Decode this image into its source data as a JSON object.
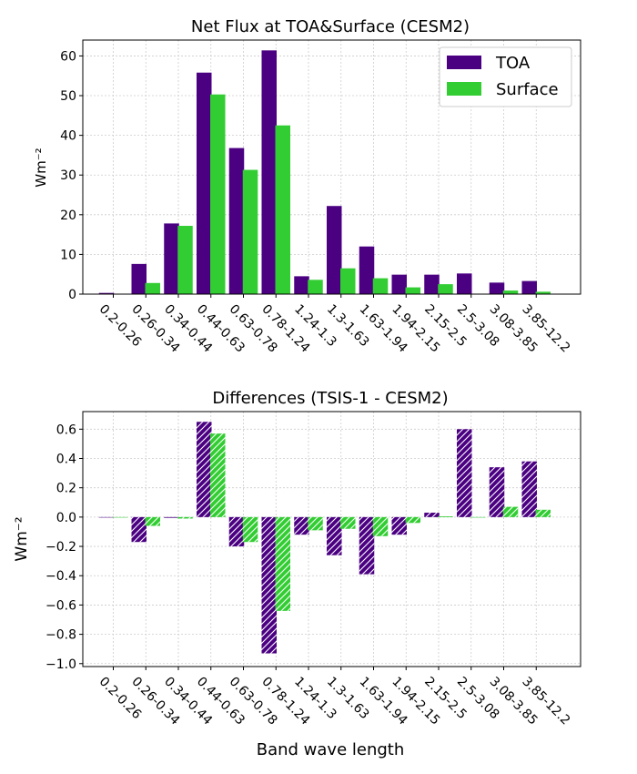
{
  "colors": {
    "toa": "#4b0082",
    "surface": "#32cd32",
    "grid": "#cccccc",
    "frame": "#000000"
  },
  "chart_data": [
    {
      "type": "bar",
      "title": "Net Flux at TOA&Surface (CESM2)",
      "xlabel": "",
      "ylabel": "Wm⁻²",
      "categories": [
        "0.2-0.26",
        "0.26-0.34",
        "0.34-0.44",
        "0.44-0.63",
        "0.63-0.78",
        "0.78-1.24",
        "1.24-1.3",
        "1.3-1.63",
        "1.63-1.94",
        "1.94-2.15",
        "2.15-2.5",
        "2.5-3.08",
        "3.08-3.85",
        "3.85-12.2"
      ],
      "series": [
        {
          "name": "TOA",
          "color": "#4b0082",
          "values": [
            0.3,
            7.6,
            17.8,
            55.8,
            36.8,
            61.4,
            4.5,
            22.2,
            12.0,
            4.9,
            4.9,
            5.2,
            2.9,
            3.3
          ]
        },
        {
          "name": "Surface",
          "color": "#32cd32",
          "values": [
            0.0,
            2.8,
            17.2,
            50.3,
            31.3,
            42.5,
            3.6,
            6.5,
            4.0,
            1.7,
            2.5,
            0.0,
            0.9,
            0.6
          ]
        }
      ],
      "ylim": [
        0,
        64
      ],
      "yticks": [
        0,
        10,
        20,
        30,
        40,
        50,
        60
      ],
      "yticklabels": [
        "0",
        "10",
        "20",
        "30",
        "40",
        "50",
        "60"
      ],
      "grid": true,
      "legend": "top-right",
      "hatch": false
    },
    {
      "type": "bar",
      "title": "Differences (TSIS-1 - CESM2)",
      "xlabel": "Band wave length",
      "ylabel": "Wm⁻²",
      "categories": [
        "0.2-0.26",
        "0.26-0.34",
        "0.34-0.44",
        "0.44-0.63",
        "0.63-0.78",
        "0.78-1.24",
        "1.24-1.3",
        "1.3-1.63",
        "1.63-1.94",
        "1.94-2.15",
        "2.15-2.5",
        "2.5-3.08",
        "3.08-3.85",
        "3.85-12.2"
      ],
      "series": [
        {
          "name": "TOA",
          "color": "#4b0082",
          "values": [
            0.0,
            -0.17,
            -0.005,
            0.65,
            -0.2,
            -0.93,
            -0.12,
            -0.26,
            -0.39,
            -0.12,
            0.03,
            0.6,
            0.34,
            0.38
          ]
        },
        {
          "name": "Surface",
          "color": "#32cd32",
          "values": [
            0.0,
            -0.06,
            -0.01,
            0.57,
            -0.17,
            -0.64,
            -0.09,
            -0.08,
            -0.13,
            -0.04,
            0.005,
            0.0,
            0.07,
            0.05
          ]
        }
      ],
      "ylim": [
        -1.02,
        0.72
      ],
      "yticks": [
        -1.0,
        -0.8,
        -0.6,
        -0.4,
        -0.2,
        0.0,
        0.2,
        0.4,
        0.6
      ],
      "yticklabels": [
        "−1.0",
        "−0.8",
        "−0.6",
        "−0.4",
        "−0.2",
        "0.0",
        "0.2",
        "0.4",
        "0.6"
      ],
      "grid": true,
      "legend": "none",
      "hatch": true
    }
  ]
}
